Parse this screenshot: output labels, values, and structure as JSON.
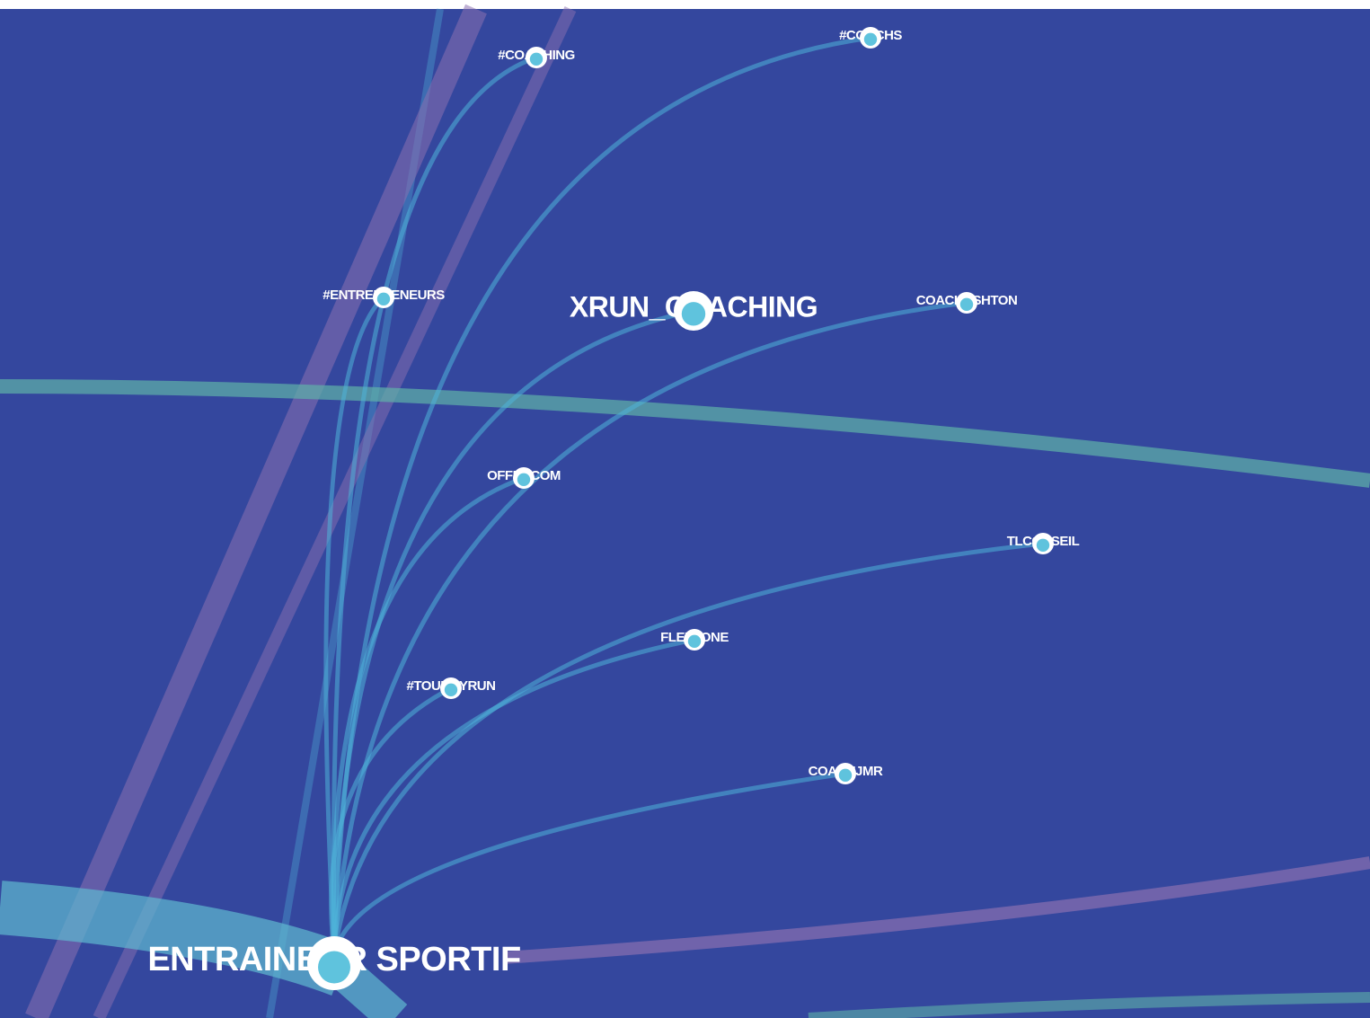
{
  "nodes": [
    {
      "label": "#COACHING"
    },
    {
      "label": "#COACHS"
    },
    {
      "label": "#ENTREPRENEURS"
    },
    {
      "label": "XRUN_COACHING"
    },
    {
      "label": "COACHASHTON"
    },
    {
      "label": "OFFRECOM"
    },
    {
      "label": "TLCONSEIL"
    },
    {
      "label": "FLEXTONE"
    },
    {
      "label": "#TOURBYRUN"
    },
    {
      "label": "COACHJMR"
    },
    {
      "label": "ENTRAINEUR SPORTIF"
    }
  ]
}
